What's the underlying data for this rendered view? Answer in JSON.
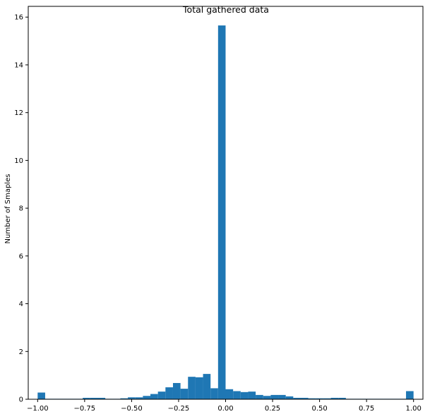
{
  "chart_data": {
    "type": "bar",
    "title": "Total gathered data",
    "xlabel": "",
    "ylabel": "Number of Smaples",
    "xlim": [
      -1.05,
      1.05
    ],
    "ylim": [
      0,
      16.45
    ],
    "grid": false,
    "bar_color": "#1f77b4",
    "x_ticks": [
      {
        "value": -1.0,
        "label": "−1.00"
      },
      {
        "value": -0.75,
        "label": "−0.75"
      },
      {
        "value": -0.5,
        "label": "−0.50"
      },
      {
        "value": -0.25,
        "label": "−0.25"
      },
      {
        "value": 0.0,
        "label": "0.00"
      },
      {
        "value": 0.25,
        "label": "0.25"
      },
      {
        "value": 0.5,
        "label": "0.50"
      },
      {
        "value": 0.75,
        "label": "0.75"
      },
      {
        "value": 1.0,
        "label": "1.00"
      }
    ],
    "y_ticks": [
      {
        "value": 0,
        "label": "0"
      },
      {
        "value": 2,
        "label": "2"
      },
      {
        "value": 4,
        "label": "4"
      },
      {
        "value": 6,
        "label": "6"
      },
      {
        "value": 8,
        "label": "8"
      },
      {
        "value": 10,
        "label": "10"
      },
      {
        "value": 12,
        "label": "12"
      },
      {
        "value": 14,
        "label": "14"
      },
      {
        "value": 16,
        "label": "16"
      }
    ],
    "bins": {
      "start": -1.0,
      "width": 0.04,
      "values": [
        0.28,
        0.02,
        0.02,
        0.02,
        0.02,
        0.02,
        0.06,
        0.06,
        0.06,
        0.02,
        0.02,
        0.04,
        0.08,
        0.08,
        0.14,
        0.22,
        0.32,
        0.5,
        0.68,
        0.44,
        0.94,
        0.92,
        1.06,
        0.46,
        15.65,
        0.42,
        0.34,
        0.3,
        0.32,
        0.18,
        0.14,
        0.18,
        0.18,
        0.12,
        0.06,
        0.06,
        0.04,
        0.04,
        0.04,
        0.06,
        0.06,
        0.02,
        0.02,
        0.02,
        0.02,
        0.02,
        0.02,
        0.02,
        0.02,
        0.34
      ]
    }
  }
}
